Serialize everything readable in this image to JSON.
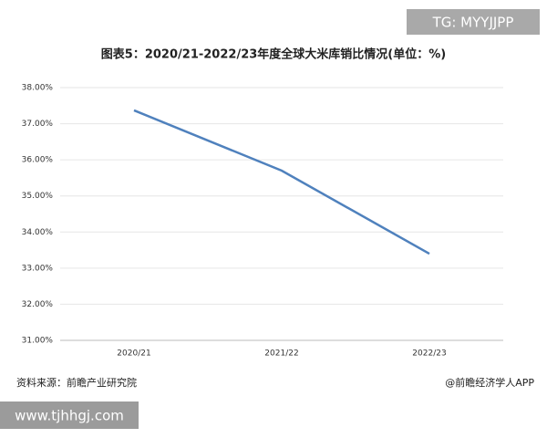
{
  "chart_data": {
    "type": "line",
    "title": "图表5：2020/21-2022/23年度全球大米库销比情况(单位：%)",
    "categories": [
      "2020/21",
      "2021/22",
      "2022/23"
    ],
    "values": [
      37.37,
      35.7,
      33.4
    ],
    "color": "#4f81bd",
    "ylim": [
      31,
      38
    ],
    "yticks": [
      {
        "value": 31,
        "label": "31.00%"
      },
      {
        "value": 32,
        "label": "32.00%"
      },
      {
        "value": 33,
        "label": "33.00%"
      },
      {
        "value": 34,
        "label": "34.00%"
      },
      {
        "value": 35,
        "label": "35.00%"
      },
      {
        "value": 36,
        "label": "36.00%"
      },
      {
        "value": 37,
        "label": "37.00%"
      },
      {
        "value": 38,
        "label": "38.00%"
      }
    ],
    "grid": true,
    "source": "资料来源：前瞻产业研究院",
    "credit": "@前瞻经济学人APP"
  },
  "overlay_tag": "TG: MYYJJPP",
  "overlay_url": "www.tjhhgj.com"
}
